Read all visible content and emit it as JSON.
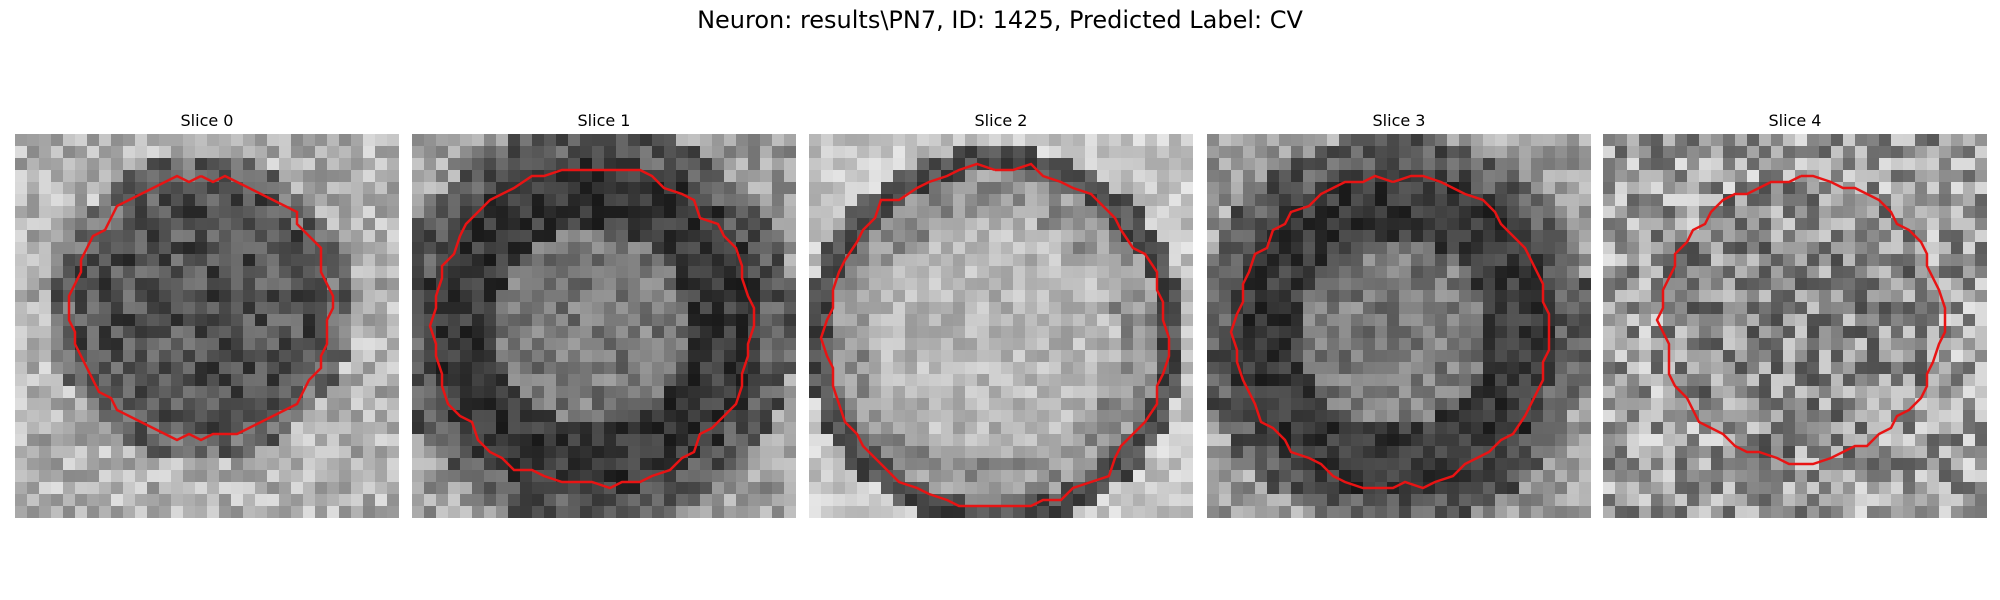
{
  "figure": {
    "title": "Neuron: results\\PN7, ID: 1425, Predicted Label: CV",
    "contour_color": "#e81414"
  },
  "slices": [
    {
      "label": "Slice 0",
      "seed": 11,
      "tone": "dark-center"
    },
    {
      "label": "Slice 1",
      "seed": 23,
      "tone": "dark-ring"
    },
    {
      "label": "Slice 2",
      "seed": 37,
      "tone": "light-center"
    },
    {
      "label": "Slice 3",
      "seed": 51,
      "tone": "dark-ring"
    },
    {
      "label": "Slice 4",
      "seed": 67,
      "tone": "noisy"
    }
  ]
}
